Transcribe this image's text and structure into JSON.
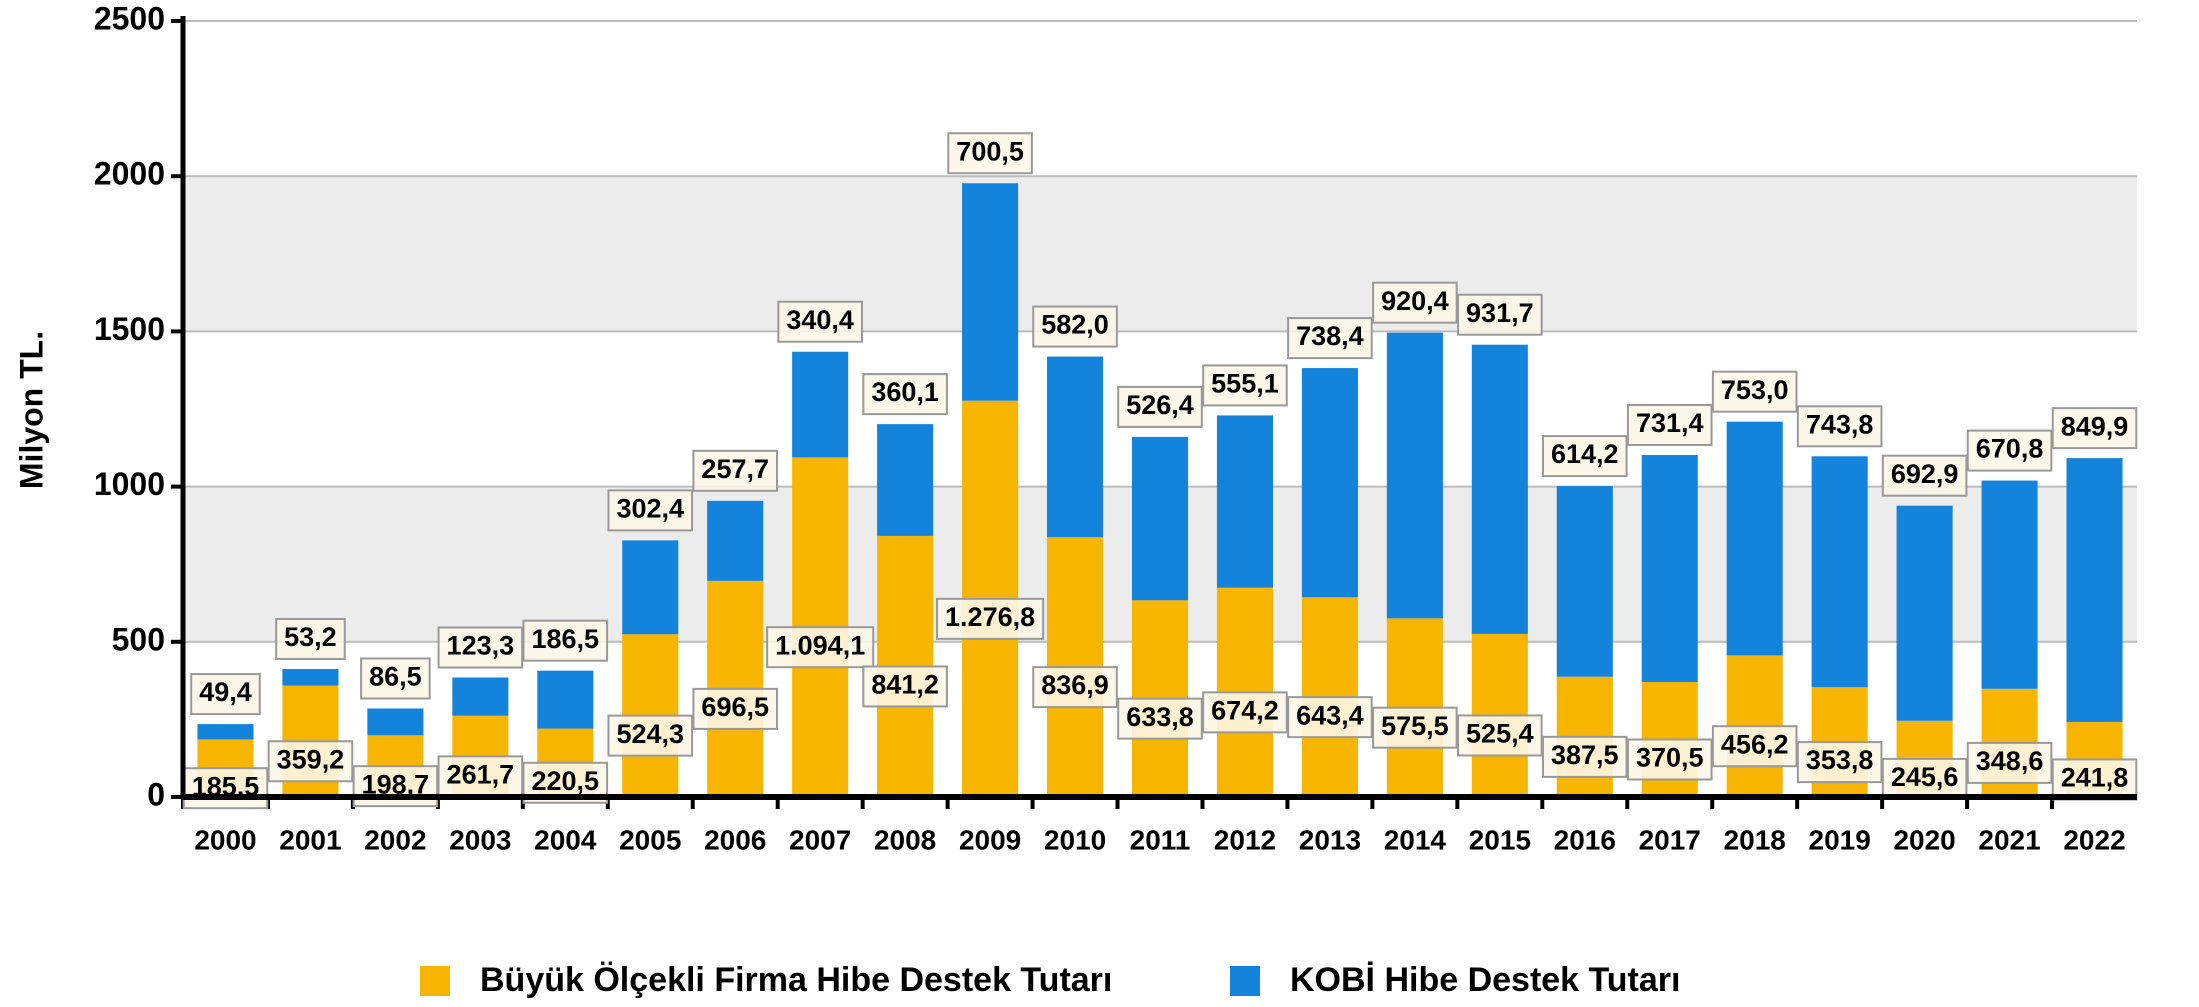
{
  "chart_data": {
    "type": "bar",
    "stacked": true,
    "y_label": "Milyon TL.",
    "categories": [
      "2000",
      "2001",
      "2002",
      "2003",
      "2004",
      "2005",
      "2006",
      "2007",
      "2008",
      "2009",
      "2010",
      "2011",
      "2012",
      "2013",
      "2014",
      "2015",
      "2016",
      "2017",
      "2018",
      "2019",
      "2020",
      "2021",
      "2022"
    ],
    "series": [
      {
        "name": "Büyük Ölçekli Firma Hibe Destek Tutarı",
        "color": "#f7b500",
        "values": [
          185.5,
          359.2,
          198.7,
          261.7,
          220.5,
          524.3,
          696.5,
          1094.1,
          841.2,
          1276.8,
          836.9,
          633.8,
          674.2,
          643.4,
          575.5,
          525.4,
          387.5,
          370.5,
          456.2,
          353.8,
          245.6,
          348.6,
          241.8
        ],
        "value_labels": [
          "185,5",
          "359,2",
          "198,7",
          "261,7",
          "220,5",
          "524,3",
          "696,5",
          "1.094,1",
          "841,2",
          "1.276,8",
          "836,9",
          "633,8",
          "674,2",
          "643,4",
          "575,5",
          "525,4",
          "387,5",
          "370,5",
          "456,2",
          "353,8",
          "245,6",
          "348,6",
          "241,8"
        ]
      },
      {
        "name": "KOBİ Hibe Destek Tutarı",
        "color": "#1383dc",
        "values": [
          49.4,
          53.2,
          86.5,
          123.3,
          186.5,
          302.4,
          257.7,
          340.4,
          360.1,
          700.5,
          582.0,
          526.4,
          555.1,
          738.4,
          920.4,
          931.7,
          614.2,
          731.4,
          753.0,
          743.8,
          692.9,
          670.8,
          849.9
        ],
        "value_labels": [
          "49,4",
          "53,2",
          "86,5",
          "123,3",
          "186,5",
          "302,4",
          "257,7",
          "340,4",
          "360,1",
          "700,5",
          "582,0",
          "526,4",
          "555,1",
          "738,4",
          "920,4",
          "931,7",
          "614,2",
          "731,4",
          "753,0",
          "743,8",
          "692,9",
          "670,8",
          "849,9"
        ]
      }
    ],
    "ylim": [
      0,
      2500
    ],
    "yticks": [
      0,
      500,
      1000,
      1500,
      2000,
      2500
    ],
    "grid": true,
    "legend": "bottom"
  }
}
